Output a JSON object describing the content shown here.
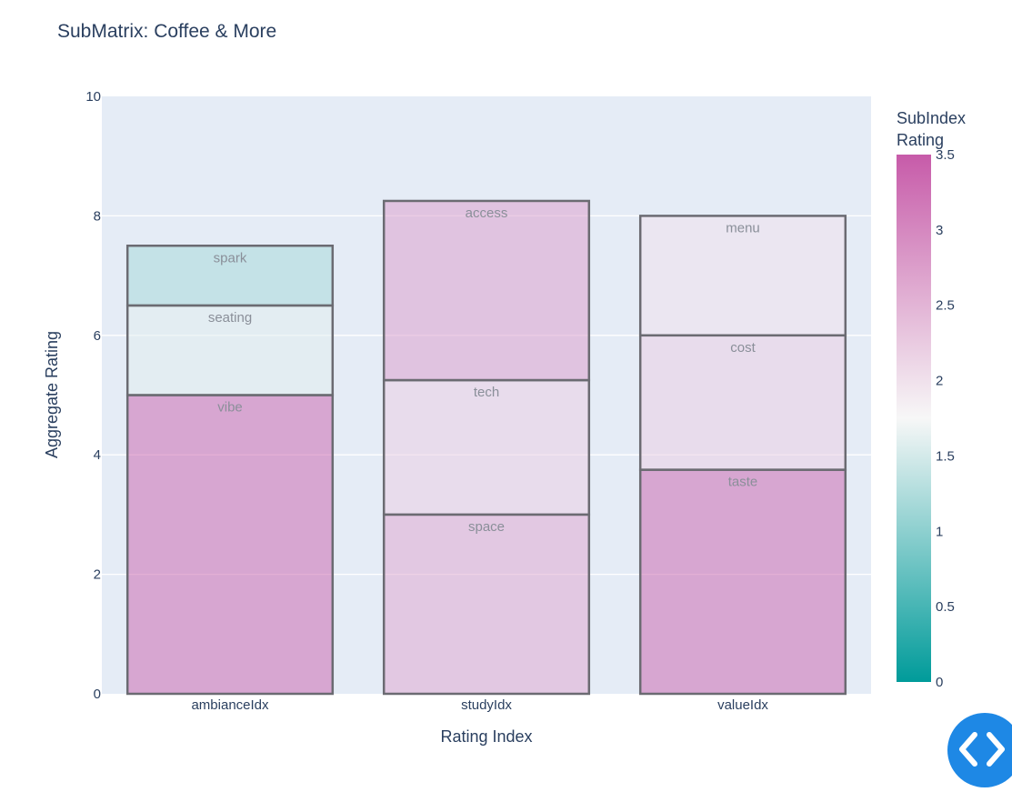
{
  "chart_data": {
    "type": "bar",
    "stacked": true,
    "title": "SubMatrix: Coffee & More",
    "xlabel": "Rating Index",
    "ylabel": "Aggregate Rating",
    "ylim": [
      0,
      10
    ],
    "yticks": [
      0,
      2,
      4,
      6,
      8,
      10
    ],
    "grid": true,
    "categories": [
      "ambianceIdx",
      "studyIdx",
      "valueIdx"
    ],
    "stacks": [
      {
        "category": "ambianceIdx",
        "segments": [
          {
            "label": "vibe",
            "value": 5.0,
            "rating": 3.3
          },
          {
            "label": "seating",
            "value": 1.5,
            "rating": 1.6
          },
          {
            "label": "spark",
            "value": 1.0,
            "rating": 1.2
          }
        ]
      },
      {
        "category": "studyIdx",
        "segments": [
          {
            "label": "space",
            "value": 3.0,
            "rating": 2.6
          },
          {
            "label": "tech",
            "value": 2.25,
            "rating": 2.2
          },
          {
            "label": "access",
            "value": 3.0,
            "rating": 2.7
          }
        ]
      },
      {
        "category": "valueIdx",
        "segments": [
          {
            "label": "taste",
            "value": 3.75,
            "rating": 3.3
          },
          {
            "label": "cost",
            "value": 2.25,
            "rating": 2.2
          },
          {
            "label": "menu",
            "value": 2.0,
            "rating": 2.0
          }
        ]
      }
    ],
    "colorbar": {
      "title_lines": [
        "SubIndex",
        "Rating"
      ],
      "range": [
        0,
        3.5
      ],
      "ticks": [
        "0",
        "0.5",
        "1",
        "1.5",
        "2",
        "2.5",
        "3",
        "3.5"
      ],
      "colorscale": [
        "#009b9a",
        "#f7f7f7",
        "#c75ba9"
      ]
    }
  }
}
